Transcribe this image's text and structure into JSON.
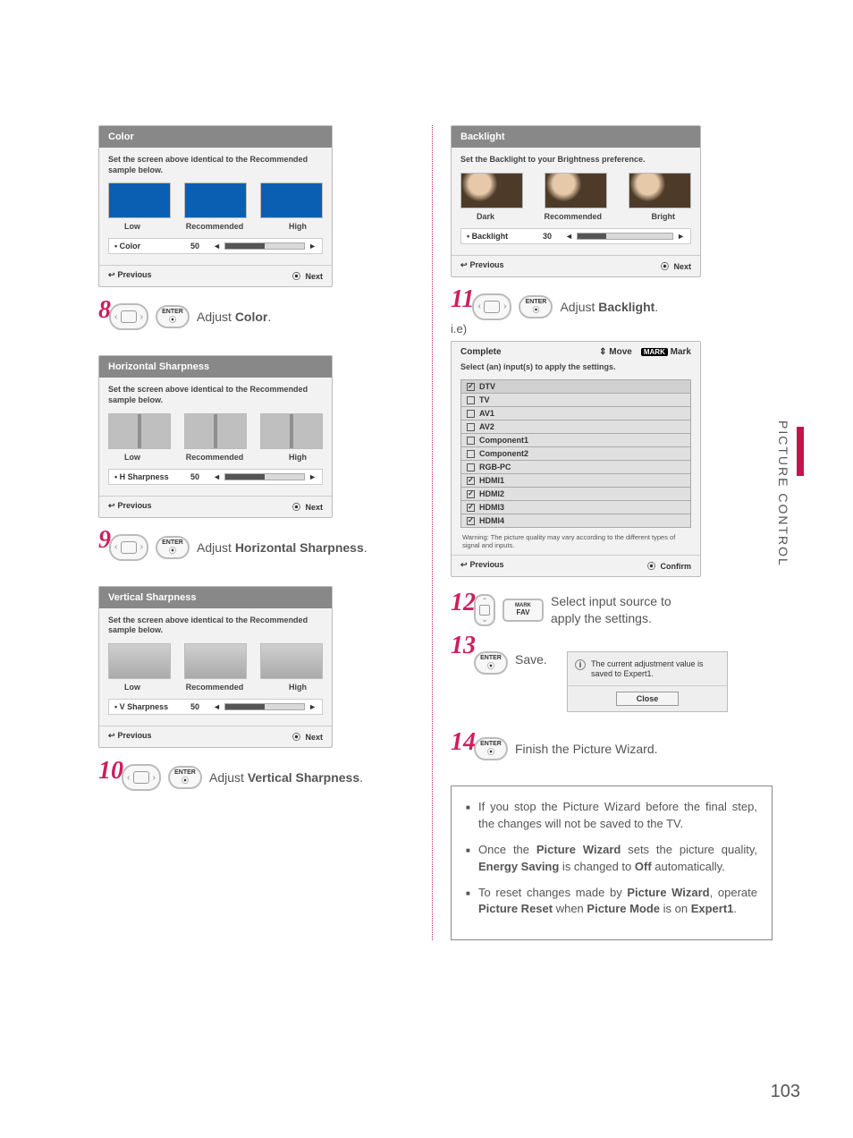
{
  "page_number": "103",
  "section_label": "PICTURE CONTROL",
  "colors": {
    "accent_red": "#cc1f5e",
    "panel_header_bg": "#888888",
    "panel_bg": "#f2f2f2",
    "color_sample": "#0b5fb3",
    "side_bar": "#c4144b"
  },
  "panels": {
    "color": {
      "title": "Color",
      "desc": "Set the screen above identical to the Recommended sample below.",
      "labels": {
        "low": "Low",
        "rec": "Recommended",
        "high": "High"
      },
      "slider": {
        "label": "• Color",
        "value": "50",
        "fill_pct": 50
      },
      "footer": {
        "prev": "Previous",
        "next": "Next"
      }
    },
    "hsharp": {
      "title": "Horizontal Sharpness",
      "desc": "Set the screen above identical to the Recommended sample below.",
      "labels": {
        "low": "Low",
        "rec": "Recommended",
        "high": "High"
      },
      "slider": {
        "label": "• H Sharpness",
        "value": "50",
        "fill_pct": 50
      },
      "footer": {
        "prev": "Previous",
        "next": "Next"
      }
    },
    "vsharp": {
      "title": "Vertical Sharpness",
      "desc": "Set the screen above identical to the Recommended sample below.",
      "labels": {
        "low": "Low",
        "rec": "Recommended",
        "high": "High"
      },
      "slider": {
        "label": "• V Sharpness",
        "value": "50",
        "fill_pct": 50
      },
      "footer": {
        "prev": "Previous",
        "next": "Next"
      }
    },
    "backlight": {
      "title": "Backlight",
      "desc": "Set the Backlight to your Brightness preference.",
      "labels": {
        "low": "Dark",
        "rec": "Recommended",
        "high": "Bright"
      },
      "slider": {
        "label": "• Backlight",
        "value": "30",
        "fill_pct": 30
      },
      "footer": {
        "prev": "Previous",
        "next": "Next"
      }
    },
    "complete": {
      "title": "Complete",
      "move_label": "Move",
      "mark_badge": "MARK",
      "mark_label": "Mark",
      "subtitle": "Select (an) input(s) to apply the settings.",
      "inputs": [
        {
          "label": "DTV",
          "checked": true,
          "selected": true
        },
        {
          "label": "TV",
          "checked": false
        },
        {
          "label": "AV1",
          "checked": false
        },
        {
          "label": "AV2",
          "checked": false
        },
        {
          "label": "Component1",
          "checked": false
        },
        {
          "label": "Component2",
          "checked": false
        },
        {
          "label": "RGB-PC",
          "checked": false
        },
        {
          "label": "HDMI1",
          "checked": true
        },
        {
          "label": "HDMI2",
          "checked": true
        },
        {
          "label": "HDMI3",
          "checked": true
        },
        {
          "label": "HDMI4",
          "checked": true
        }
      ],
      "warning": "Warning: The picture quality may vary according to the different types of signal and inputs.",
      "footer": {
        "prev": "Previous",
        "next": "Confirm"
      }
    }
  },
  "steps": {
    "s8": {
      "num": "8",
      "key": "ENTER",
      "pre": "Adjust ",
      "bold": "Color",
      "post": "."
    },
    "s9": {
      "num": "9",
      "key": "ENTER",
      "pre": "Adjust ",
      "bold": "Horizontal Sharpness",
      "post": "."
    },
    "s10": {
      "num": "10",
      "key": "ENTER",
      "pre": "Adjust ",
      "bold": "Vertical Sharpness",
      "post": "."
    },
    "s11": {
      "num": "11",
      "key": "ENTER",
      "pre": "Adjust ",
      "bold": "Backlight",
      "post": "."
    },
    "s12": {
      "num": "12",
      "mark": "MARK",
      "fav": "FAV",
      "text": "Select input source to apply the settings."
    },
    "s13": {
      "num": "13",
      "key": "ENTER",
      "text": "Save."
    },
    "s14": {
      "num": "14",
      "key": "ENTER",
      "text": "Finish the Picture Wizard."
    }
  },
  "ie_label": "i.e)",
  "info_box": {
    "text": "The current adjustment value is saved to Expert1.",
    "close": "Close"
  },
  "notes": {
    "n1": "If you stop the Picture Wizard before the final step, the changes will not be saved to the TV.",
    "n2a": "Once the ",
    "n2b": "Picture Wizard",
    "n2c": " sets the picture quality, ",
    "n2d": "Energy Saving",
    "n2e": " is changed to ",
    "n2f": "Off",
    "n2g": " automatically.",
    "n3a": "To reset changes made by ",
    "n3b": "Picture Wizard",
    "n3c": ", operate ",
    "n3d": "Picture Reset",
    "n3e": " when ",
    "n3f": "Picture Mode",
    "n3g": " is on ",
    "n3h": "Expert1",
    "n3i": "."
  }
}
